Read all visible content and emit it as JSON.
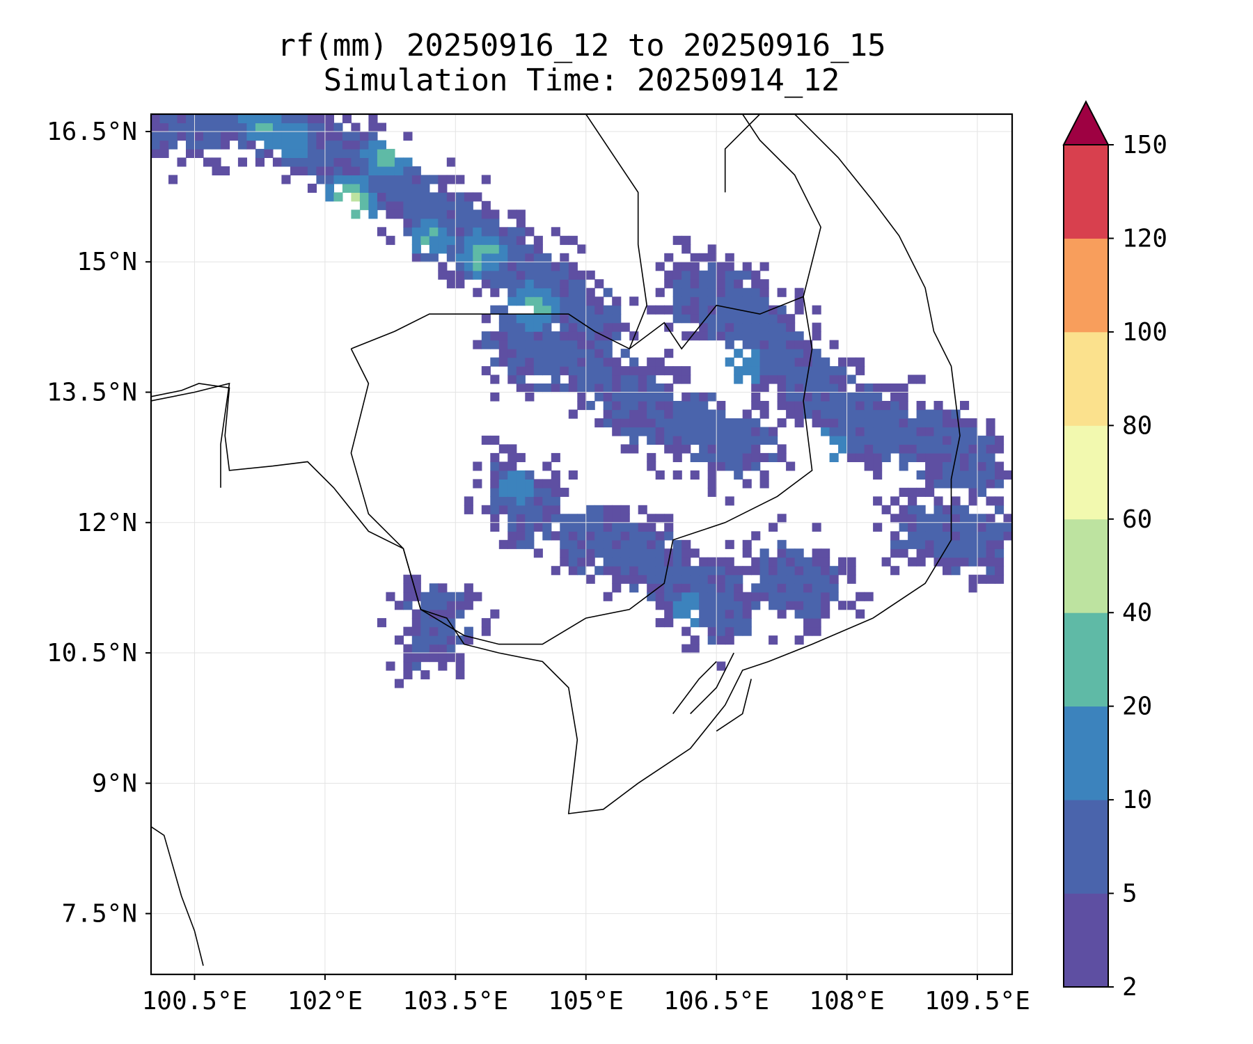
{
  "title": {
    "line1": "rf(mm) 20250916_12 to 20250916_15",
    "line2": "Simulation Time: 20250914_12"
  },
  "map": {
    "lon_range": [
      100.0,
      109.9
    ],
    "lat_range": [
      6.8,
      16.7
    ],
    "lon_ticks": [
      100.5,
      102,
      103.5,
      105,
      106.5,
      108,
      109.5
    ],
    "lon_tick_labels": [
      "100.5°E",
      "102°E",
      "103.5°E",
      "105°E",
      "106.5°E",
      "108°E",
      "109.5°E"
    ],
    "lat_ticks": [
      7.5,
      9,
      10.5,
      12,
      13.5,
      15,
      16.5
    ],
    "lat_tick_labels": [
      "7.5°N",
      "9°N",
      "10.5°N",
      "12°N",
      "13.5°N",
      "15°N",
      "16.5°N"
    ],
    "gridlines": true
  },
  "colorbar": {
    "levels": [
      "2",
      "5",
      "10",
      "20",
      "40",
      "60",
      "80",
      "100",
      "120",
      "150"
    ],
    "colors": [
      "#5e4fa2",
      "#4a64ac",
      "#3c83bd",
      "#5fbaa6",
      "#bde3a0",
      "#f2f9af",
      "#fbe18d",
      "#f89e5c",
      "#d8404e",
      "#9e0142"
    ],
    "extend": "max"
  }
}
